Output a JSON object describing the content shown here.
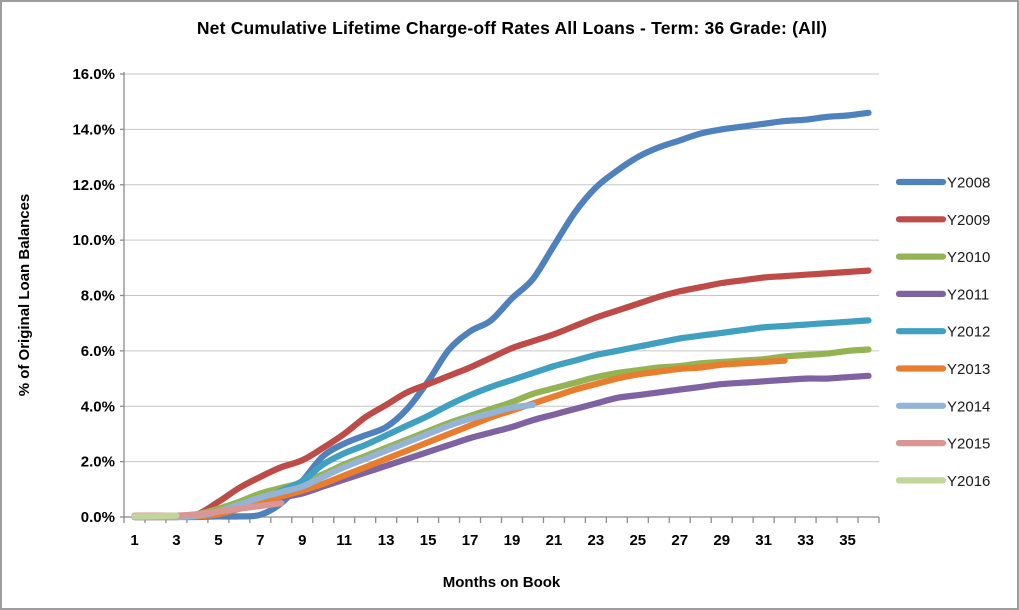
{
  "chart_data": {
    "type": "line",
    "title": "Net Cumulative Lifetime Charge-off Rates All Loans - Term: 36 Grade: (All)",
    "xlabel": "Months on Book",
    "ylabel": "% of Original Loan Balances",
    "x": [
      1,
      2,
      3,
      4,
      5,
      6,
      7,
      8,
      9,
      10,
      11,
      12,
      13,
      14,
      15,
      16,
      17,
      18,
      19,
      20,
      21,
      22,
      23,
      24,
      25,
      26,
      27,
      28,
      29,
      30,
      31,
      32,
      33,
      34,
      35,
      36
    ],
    "xtick_labels": [
      "1",
      "3",
      "5",
      "7",
      "9",
      "11",
      "13",
      "15",
      "17",
      "19",
      "21",
      "23",
      "25",
      "27",
      "29",
      "31",
      "33",
      "35"
    ],
    "ytick_labels": [
      "0.0%",
      "2.0%",
      "4.0%",
      "6.0%",
      "8.0%",
      "10.0%",
      "12.0%",
      "14.0%",
      "16.0%"
    ],
    "ylim": [
      0,
      16
    ],
    "grid": true,
    "legend_position": "right",
    "series": [
      {
        "name": "Y2008",
        "color": "#4F81BD",
        "values": [
          0,
          0,
          0,
          0,
          0.02,
          0.02,
          0.08,
          0.5,
          1.3,
          2.2,
          2.65,
          2.95,
          3.25,
          3.9,
          4.9,
          6.05,
          6.7,
          7.1,
          7.9,
          8.6,
          9.8,
          11.0,
          11.9,
          12.5,
          13.0,
          13.35,
          13.6,
          13.85,
          14.0,
          14.1,
          14.2,
          14.3,
          14.35,
          14.45,
          14.5,
          14.6
        ]
      },
      {
        "name": "Y2009",
        "color": "#BE4B48",
        "values": [
          0.02,
          0.02,
          0.03,
          0.1,
          0.55,
          1.05,
          1.45,
          1.8,
          2.05,
          2.5,
          3.0,
          3.6,
          4.05,
          4.5,
          4.8,
          5.1,
          5.4,
          5.75,
          6.1,
          6.35,
          6.6,
          6.9,
          7.2,
          7.45,
          7.7,
          7.95,
          8.15,
          8.3,
          8.45,
          8.55,
          8.65,
          8.7,
          8.75,
          8.8,
          8.85,
          8.9
        ]
      },
      {
        "name": "Y2010",
        "color": "#94B353",
        "values": [
          0,
          0,
          0.02,
          0.1,
          0.3,
          0.55,
          0.85,
          1.05,
          1.25,
          1.55,
          1.9,
          2.2,
          2.5,
          2.8,
          3.1,
          3.4,
          3.65,
          3.9,
          4.15,
          4.45,
          4.65,
          4.85,
          5.05,
          5.2,
          5.3,
          5.4,
          5.45,
          5.55,
          5.6,
          5.65,
          5.7,
          5.8,
          5.85,
          5.9,
          6.0,
          6.05
        ]
      },
      {
        "name": "Y2011",
        "color": "#7E62A1",
        "values": [
          0,
          0,
          0,
          0.02,
          0.1,
          0.3,
          0.55,
          0.7,
          0.85,
          1.1,
          1.35,
          1.6,
          1.85,
          2.1,
          2.35,
          2.6,
          2.85,
          3.05,
          3.25,
          3.5,
          3.7,
          3.9,
          4.1,
          4.3,
          4.4,
          4.5,
          4.6,
          4.7,
          4.8,
          4.85,
          4.9,
          4.95,
          5.0,
          5.0,
          5.05,
          5.1
        ]
      },
      {
        "name": "Y2012",
        "color": "#3FA0BF",
        "values": [
          0,
          0,
          0.02,
          0.05,
          0.15,
          0.35,
          0.6,
          0.95,
          1.3,
          1.9,
          2.3,
          2.6,
          2.95,
          3.3,
          3.65,
          4.05,
          4.4,
          4.7,
          4.95,
          5.2,
          5.45,
          5.65,
          5.85,
          6.0,
          6.15,
          6.3,
          6.45,
          6.55,
          6.65,
          6.75,
          6.85,
          6.9,
          6.95,
          7.0,
          7.05,
          7.1
        ]
      },
      {
        "name": "Y2013",
        "color": "#E87D2E",
        "values": [
          0,
          0,
          0,
          0.02,
          0.1,
          0.3,
          0.55,
          0.75,
          0.95,
          1.2,
          1.5,
          1.8,
          2.1,
          2.4,
          2.7,
          3.0,
          3.3,
          3.6,
          3.85,
          4.1,
          4.35,
          4.6,
          4.8,
          5.0,
          5.15,
          5.25,
          5.35,
          5.4,
          5.5,
          5.55,
          5.6,
          5.65,
          null,
          null,
          null,
          null
        ]
      },
      {
        "name": "Y2014",
        "color": "#95B3D7",
        "values": [
          0,
          0,
          0,
          0.05,
          0.2,
          0.45,
          0.7,
          0.9,
          1.1,
          1.45,
          1.8,
          2.1,
          2.4,
          2.7,
          3.0,
          3.3,
          3.55,
          3.75,
          3.95,
          4.05,
          null,
          null,
          null,
          null,
          null,
          null,
          null,
          null,
          null,
          null,
          null,
          null,
          null,
          null,
          null,
          null
        ]
      },
      {
        "name": "Y2015",
        "color": "#D99694",
        "values": [
          0.05,
          0.05,
          0.05,
          0.1,
          0.2,
          0.3,
          0.4,
          0.5,
          null,
          null,
          null,
          null,
          null,
          null,
          null,
          null,
          null,
          null,
          null,
          null,
          null,
          null,
          null,
          null,
          null,
          null,
          null,
          null,
          null,
          null,
          null,
          null,
          null,
          null,
          null,
          null
        ]
      },
      {
        "name": "Y2016",
        "color": "#C2D69B",
        "values": [
          0.02,
          0.03,
          0.05,
          null,
          null,
          null,
          null,
          null,
          null,
          null,
          null,
          null,
          null,
          null,
          null,
          null,
          null,
          null,
          null,
          null,
          null,
          null,
          null,
          null,
          null,
          null,
          null,
          null,
          null,
          null,
          null,
          null,
          null,
          null,
          null,
          null
        ]
      }
    ]
  }
}
